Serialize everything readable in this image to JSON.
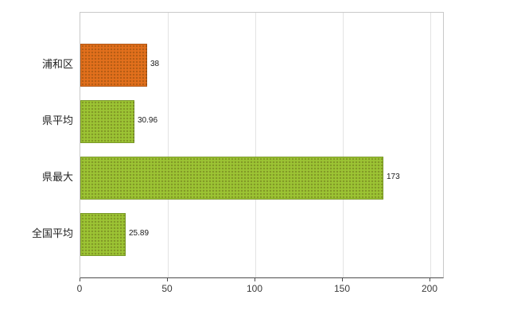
{
  "chart_data": {
    "type": "bar",
    "orientation": "horizontal",
    "title": "",
    "categories": [
      "浦和区",
      "県平均",
      "県最大",
      "全国平均"
    ],
    "values": [
      38,
      30.96,
      173,
      25.89
    ],
    "value_labels": [
      "38",
      "30.96",
      "173",
      "25.89"
    ],
    "bar_colors": [
      "#e2701c",
      "#9cc434",
      "#9cc434",
      "#9cc434"
    ],
    "x_ticks": [
      0,
      50,
      100,
      150,
      200
    ],
    "xlim": [
      0,
      208
    ],
    "grid": "vertical-only",
    "gridline_color": "#e3e3e3",
    "axis_color": "#4d4d4d",
    "plot_border_color": "#c9c9c9",
    "background_color": "#ffffff",
    "legend": "none"
  }
}
